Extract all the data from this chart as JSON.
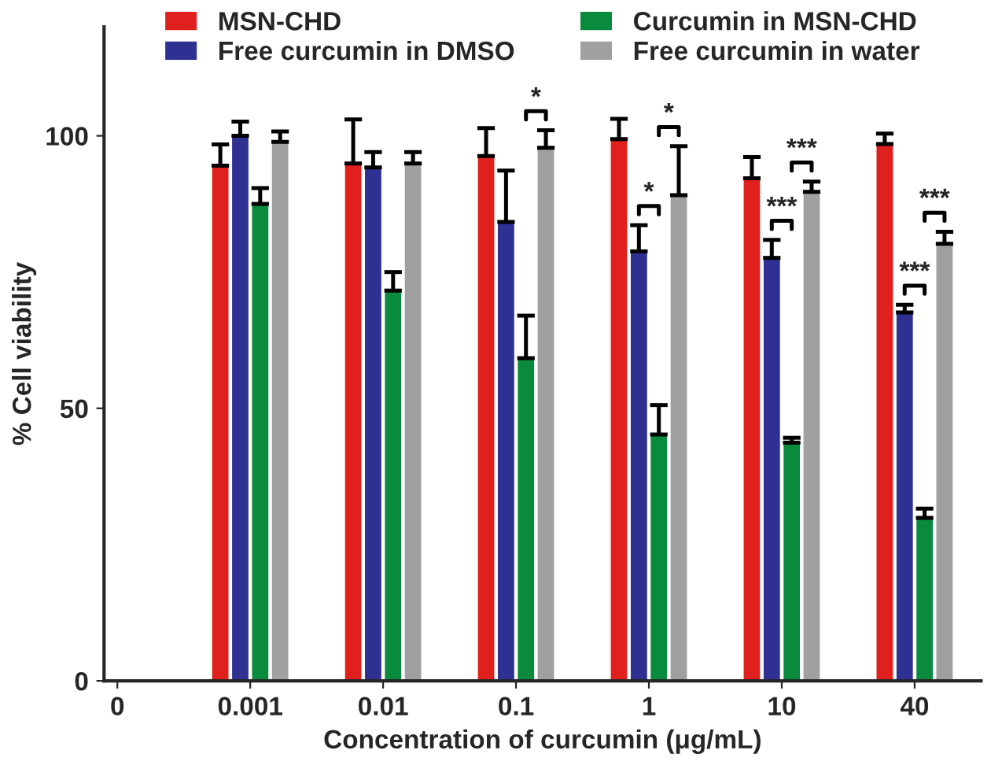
{
  "chart_data": {
    "type": "bar",
    "xlabel": "Concentration of curcumin (μg/mL)",
    "ylabel": "% Cell viability",
    "categories": [
      "0",
      "0.001",
      "0.01",
      "0.1",
      "1",
      "10",
      "40"
    ],
    "series": [
      {
        "name": "MSN-CHD",
        "color": "#e0201c",
        "values": [
          null,
          94.5,
          94.9,
          96.3,
          99.4,
          92.2,
          98.5
        ],
        "errors": [
          null,
          [
            94.5,
            98.4
          ],
          [
            94.9,
            103
          ],
          [
            96.3,
            101.4
          ],
          [
            99.4,
            103.1
          ],
          [
            92.2,
            96.1
          ],
          [
            98.5,
            100.4
          ]
        ]
      },
      {
        "name": "Free curcumin in DMSO",
        "color": "#2e3192",
        "values": [
          null,
          100,
          94.2,
          84.2,
          78.8,
          77.6,
          67.6
        ],
        "errors": [
          null,
          [
            100,
            102.6
          ],
          [
            94.2,
            97
          ],
          [
            84.2,
            93.6
          ],
          [
            78.8,
            83.6
          ],
          [
            77.6,
            80.9
          ],
          [
            67.6,
            69
          ]
        ]
      },
      {
        "name": "Curcumin in MSN-CHD",
        "color": "#0a8a3c",
        "values": [
          null,
          87.5,
          71.6,
          59.2,
          45.2,
          43.7,
          29.9
        ],
        "errors": [
          null,
          [
            87.5,
            90.4
          ],
          [
            71.6,
            75
          ],
          [
            59.2,
            67
          ],
          [
            45.2,
            50.6
          ],
          [
            43.7,
            44.6
          ],
          [
            29.9,
            31.6
          ]
        ]
      },
      {
        "name": "Free curcumin in water",
        "color": "#a0a0a0",
        "values": [
          null,
          98.9,
          94.9,
          97.8,
          89.1,
          89.7,
          80.2
        ],
        "errors": [
          null,
          [
            98.9,
            100.8
          ],
          [
            94.9,
            97
          ],
          [
            97.8,
            101
          ],
          [
            89.1,
            98.1
          ],
          [
            89.7,
            91.6
          ],
          [
            80.2,
            82.4
          ]
        ]
      }
    ],
    "annotations": [
      "*",
      "*",
      "*",
      "***",
      "***",
      "***",
      "***"
    ],
    "ylim": [
      0,
      120
    ],
    "yticks": [
      0,
      50,
      100
    ],
    "grid": false,
    "legend": "top"
  }
}
